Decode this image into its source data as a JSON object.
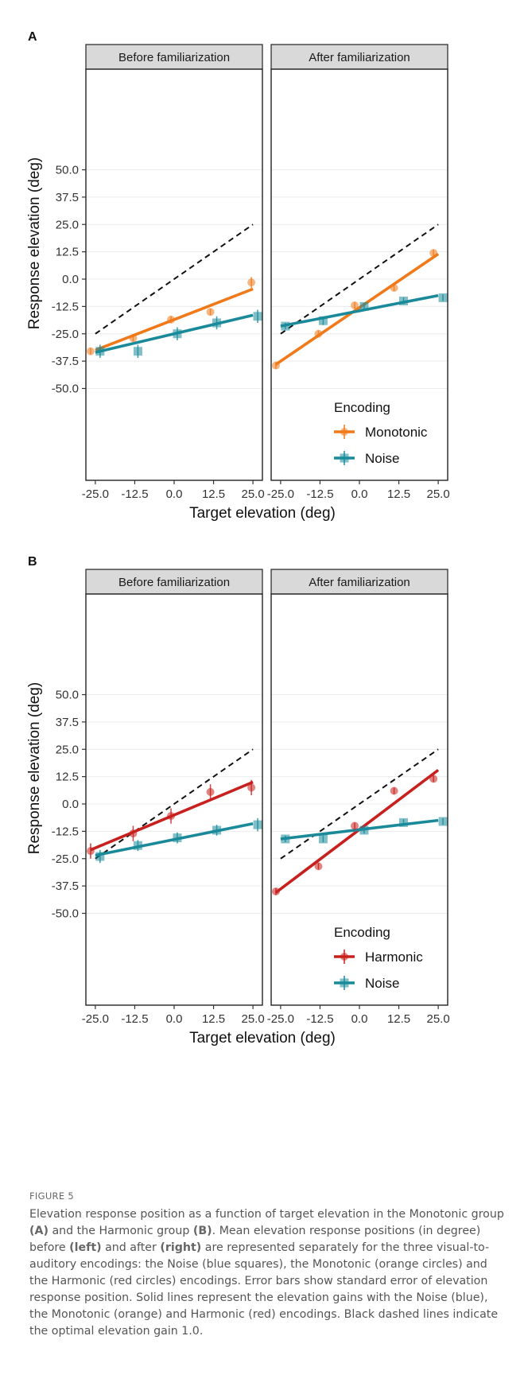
{
  "figure": {
    "label": "FIGURE 5",
    "caption": [
      {
        "t": "Elevation response position as a function of target elevation in the Monotonic group "
      },
      {
        "t": "(A)",
        "b": true
      },
      {
        "t": " and the Harmonic group "
      },
      {
        "t": "(B)",
        "b": true
      },
      {
        "t": ". Mean elevation response positions (in degree) before "
      },
      {
        "t": "(left)",
        "b": true
      },
      {
        "t": " and after "
      },
      {
        "t": "(right)",
        "b": true
      },
      {
        "t": " are represented separately for the three visual-to-auditory encodings: the Noise (blue squares), the Monotonic (orange circles) and the Harmonic (red circles) encodings. Error bars show standard error of elevation response position. Solid lines represent the elevation gains with the Noise (blue), the Monotonic (orange) and Harmonic (red) encodings. Black dashed lines indicate the optimal elevation gain 1.0."
      }
    ]
  },
  "colors": {
    "noise": "#1a8a9a",
    "monotonic": "#f07a1a",
    "harmonic": "#c8201e"
  },
  "chart_data": [
    {
      "panel_label": "A",
      "type": "scatter",
      "xlabel": "Target elevation (deg)",
      "ylabel": "Response elevation (deg)",
      "xlim": [
        -28,
        28
      ],
      "ylim": [
        -92,
        96
      ],
      "x_ticks": [
        "-25.0",
        "-12.5",
        "0.0",
        "12.5",
        "25.0"
      ],
      "y_ticks": [
        "50.0",
        "37.5",
        "25.0",
        "12.5",
        "0.0",
        "-12.5",
        "-25.0",
        "-37.5",
        "-50.0"
      ],
      "legend": {
        "title": "Encoding",
        "position": "bottom-right",
        "entries": [
          "Monotonic",
          "Noise"
        ]
      },
      "facets": [
        {
          "strip": "Before familiarization",
          "reference_line": {
            "x": [
              -25,
              25
            ],
            "y": [
              -25,
              25
            ],
            "dashed": true
          },
          "series": [
            {
              "name": "Monotonic",
              "marker": "circle",
              "color": "#f07a1a",
              "points": [
                [
                  -26.5,
                  -33.0,
                  1.5
                ],
                [
                  -13.0,
                  -27.0,
                  1.5
                ],
                [
                  -1.0,
                  -18.5,
                  1.5
                ],
                [
                  11.5,
                  -15.0,
                  1.5
                ],
                [
                  24.5,
                  -1.5,
                  2.5
                ]
              ],
              "fit": {
                "x": [
                  -25,
                  25
                ],
                "y": [
                  -32.5,
                  -4.5
                ]
              }
            },
            {
              "name": "Noise",
              "marker": "square",
              "color": "#1a8a9a",
              "points": [
                [
                  -23.5,
                  -33.0,
                  3
                ],
                [
                  -11.5,
                  -33.0,
                  3
                ],
                [
                  1.0,
                  -25.0,
                  3
                ],
                [
                  13.5,
                  -20.0,
                  3
                ],
                [
                  26.5,
                  -17.0,
                  3
                ]
              ],
              "fit": {
                "x": [
                  -25,
                  25
                ],
                "y": [
                  -33.5,
                  -16.5
                ]
              }
            }
          ]
        },
        {
          "strip": "After familiarization",
          "reference_line": {
            "x": [
              -25,
              25
            ],
            "y": [
              -25,
              25
            ],
            "dashed": true
          },
          "series": [
            {
              "name": "Monotonic",
              "marker": "circle",
              "color": "#f07a1a",
              "points": [
                [
                  -26.5,
                  -39.5,
                  1.5
                ],
                [
                  -13.0,
                  -25.0,
                  1.5
                ],
                [
                  -1.5,
                  -12.0,
                  1.5
                ],
                [
                  11.0,
                  -4.0,
                  1.5
                ],
                [
                  23.5,
                  12.0,
                  1.5
                ]
              ],
              "fit": {
                "x": [
                  -26.5,
                  25
                ],
                "y": [
                  -39.0,
                  11.5
                ]
              }
            },
            {
              "name": "Noise",
              "marker": "square",
              "color": "#1a8a9a",
              "points": [
                [
                  -23.5,
                  -21.5,
                  1.5
                ],
                [
                  -11.5,
                  -19.0,
                  2
                ],
                [
                  1.5,
                  -12.5,
                  1.5
                ],
                [
                  14.0,
                  -10.0,
                  1.5
                ],
                [
                  26.5,
                  -8.5,
                  1.5
                ]
              ],
              "fit": {
                "x": [
                  -25,
                  25
                ],
                "y": [
                  -21.5,
                  -7.5
                ]
              }
            }
          ]
        }
      ]
    },
    {
      "panel_label": "B",
      "type": "scatter",
      "xlabel": "Target elevation (deg)",
      "ylabel": "Response elevation (deg)",
      "xlim": [
        -28,
        28
      ],
      "ylim": [
        -92,
        96
      ],
      "x_ticks": [
        "-25.0",
        "-12.5",
        "0.0",
        "12.5",
        "25.0"
      ],
      "y_ticks": [
        "50.0",
        "37.5",
        "25.0",
        "12.5",
        "0.0",
        "-12.5",
        "-25.0",
        "-37.5",
        "-50.0"
      ],
      "legend": {
        "title": "Encoding",
        "position": "bottom-right",
        "entries": [
          "Harmonic",
          "Noise"
        ]
      },
      "facets": [
        {
          "strip": "Before familiarization",
          "reference_line": {
            "x": [
              -25,
              25
            ],
            "y": [
              -25,
              25
            ],
            "dashed": true
          },
          "series": [
            {
              "name": "Harmonic",
              "marker": "circle",
              "color": "#c8201e",
              "points": [
                [
                  -26.5,
                  -21.5,
                  3.5
                ],
                [
                  -13.0,
                  -13.5,
                  3.5
                ],
                [
                  -1.0,
                  -5.5,
                  3.5
                ],
                [
                  11.5,
                  5.5,
                  3.5
                ],
                [
                  24.5,
                  7.5,
                  3.5
                ]
              ],
              "fit": {
                "x": [
                  -26.5,
                  25
                ],
                "y": [
                  -21.0,
                  10.0
                ]
              }
            },
            {
              "name": "Noise",
              "marker": "square",
              "color": "#1a8a9a",
              "points": [
                [
                  -23.5,
                  -24.0,
                  3
                ],
                [
                  -11.5,
                  -19.0,
                  2.5
                ],
                [
                  1.0,
                  -15.5,
                  2.5
                ],
                [
                  13.5,
                  -12.0,
                  2.5
                ],
                [
                  26.5,
                  -9.5,
                  3
                ]
              ],
              "fit": {
                "x": [
                  -25,
                  25
                ],
                "y": [
                  -23.5,
                  -9.0
                ]
              }
            }
          ]
        },
        {
          "strip": "After familiarization",
          "reference_line": {
            "x": [
              -25,
              25
            ],
            "y": [
              -25,
              25
            ],
            "dashed": true
          },
          "series": [
            {
              "name": "Harmonic",
              "marker": "circle",
              "color": "#c8201e",
              "points": [
                [
                  -26.5,
                  -40.0,
                  1.5
                ],
                [
                  -13.0,
                  -28.5,
                  1.5
                ],
                [
                  -1.5,
                  -10.0,
                  1.5
                ],
                [
                  11.0,
                  6.0,
                  1.5
                ],
                [
                  23.5,
                  11.5,
                  1.5
                ]
              ],
              "fit": {
                "x": [
                  -26.5,
                  25
                ],
                "y": [
                  -40.5,
                  15.5
                ]
              }
            },
            {
              "name": "Noise",
              "marker": "square",
              "color": "#1a8a9a",
              "points": [
                [
                  -23.5,
                  -16.0,
                  1.5
                ],
                [
                  -11.5,
                  -16.0,
                  1.5
                ],
                [
                  1.5,
                  -12.0,
                  1.5
                ],
                [
                  14.0,
                  -8.5,
                  1.5
                ],
                [
                  26.5,
                  -8.0,
                  1.5
                ]
              ],
              "fit": {
                "x": [
                  -25,
                  25
                ],
                "y": [
                  -16.0,
                  -7.5
                ]
              }
            }
          ]
        }
      ]
    }
  ]
}
